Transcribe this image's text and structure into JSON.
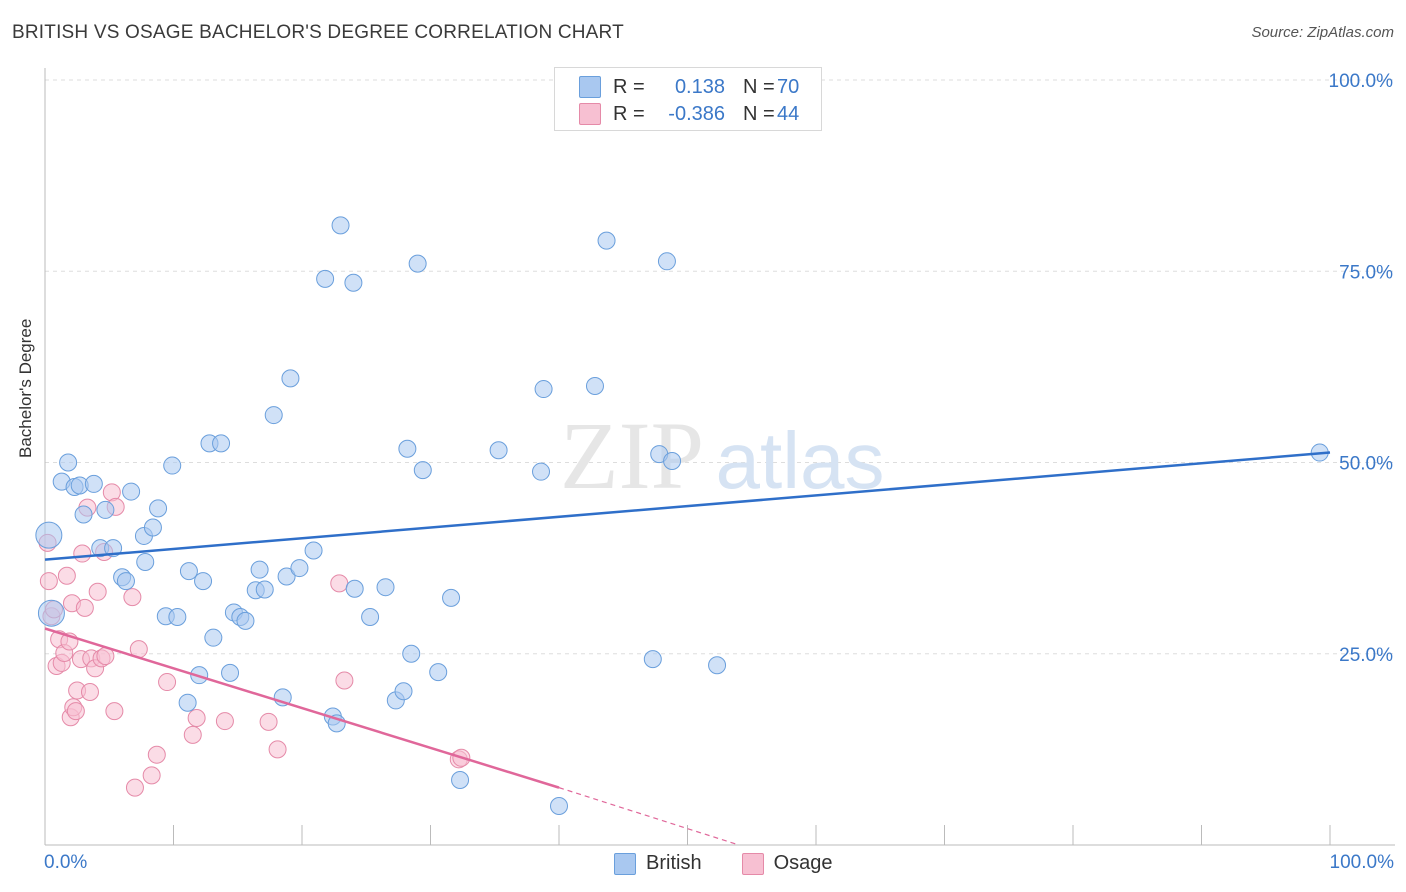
{
  "title": "BRITISH VS OSAGE BACHELOR'S DEGREE CORRELATION CHART",
  "source": "Source: ZipAtlas.com",
  "watermark": {
    "zip": "ZIP",
    "atlas": "atlas"
  },
  "legend": {
    "rows": [
      {
        "r_label": "R =",
        "r_value": "0.138",
        "n_label": "N =",
        "n_value": "70",
        "color": "#a9c8f0",
        "border": "#6a9fdc"
      },
      {
        "r_label": "R =",
        "r_value": "-0.386",
        "n_label": "N =",
        "n_value": "44",
        "color": "#f7c0d2",
        "border": "#e58aa8"
      }
    ]
  },
  "bottom_legend": {
    "british": "British",
    "osage": "Osage"
  },
  "x_tick_left": "0.0%",
  "x_tick_right": "100.0%",
  "colors": {
    "british_fill": "#a9c8f0",
    "british_stroke": "#6a9fdc",
    "british_line": "#2f6fc9",
    "osage_fill": "#f7c0d2",
    "osage_stroke": "#e58aa8",
    "osage_line": "#e0679a",
    "tick_text": "#3b78c8",
    "grid": "#dddddd"
  },
  "chart_data": {
    "type": "scatter",
    "title": "BRITISH VS OSAGE BACHELOR'S DEGREE CORRELATION CHART",
    "xlabel": "",
    "ylabel": "Bachelor's Degree",
    "xlim": [
      0,
      100
    ],
    "ylim": [
      0,
      100
    ],
    "y_ticks": [
      "25.0%",
      "50.0%",
      "75.0%",
      "100.0%"
    ],
    "y_tick_values": [
      25,
      50,
      75,
      100
    ],
    "grid": "horizontal dashed",
    "legend_position": "top-center",
    "series": [
      {
        "name": "British",
        "r": 0.138,
        "n": 70,
        "trend": {
          "x": [
            0,
            100
          ],
          "y": [
            37.3,
            51.3
          ]
        },
        "points": [
          [
            0.3,
            40.5
          ],
          [
            0.5,
            30.3
          ],
          [
            1.3,
            47.5
          ],
          [
            1.8,
            50.0
          ],
          [
            2.3,
            46.8
          ],
          [
            2.7,
            47.0
          ],
          [
            3.0,
            43.2
          ],
          [
            3.8,
            47.2
          ],
          [
            4.3,
            38.8
          ],
          [
            4.7,
            43.8
          ],
          [
            5.3,
            38.8
          ],
          [
            6.7,
            46.2
          ],
          [
            6.0,
            35.0
          ],
          [
            6.3,
            34.5
          ],
          [
            7.7,
            40.4
          ],
          [
            7.8,
            37.0
          ],
          [
            8.4,
            41.5
          ],
          [
            8.8,
            44.0
          ],
          [
            9.4,
            29.9
          ],
          [
            9.9,
            49.6
          ],
          [
            10.3,
            29.8
          ],
          [
            11.1,
            18.6
          ],
          [
            11.2,
            35.8
          ],
          [
            12.0,
            22.2
          ],
          [
            12.3,
            34.5
          ],
          [
            12.8,
            52.5
          ],
          [
            13.1,
            27.1
          ],
          [
            13.7,
            52.5
          ],
          [
            14.4,
            22.5
          ],
          [
            14.7,
            30.4
          ],
          [
            15.2,
            29.8
          ],
          [
            15.6,
            29.3
          ],
          [
            16.4,
            33.3
          ],
          [
            16.7,
            36.0
          ],
          [
            17.1,
            33.4
          ],
          [
            17.8,
            56.2
          ],
          [
            18.5,
            19.3
          ],
          [
            18.8,
            35.1
          ],
          [
            19.1,
            61.0
          ],
          [
            19.8,
            36.2
          ],
          [
            20.9,
            38.5
          ],
          [
            21.8,
            74.0
          ],
          [
            22.4,
            16.8
          ],
          [
            22.7,
            15.9
          ],
          [
            23.0,
            81.0
          ],
          [
            24.0,
            73.5
          ],
          [
            24.1,
            33.5
          ],
          [
            25.3,
            29.8
          ],
          [
            26.5,
            33.7
          ],
          [
            27.3,
            18.9
          ],
          [
            27.9,
            20.1
          ],
          [
            28.2,
            51.8
          ],
          [
            28.5,
            25.0
          ],
          [
            29.0,
            76.0
          ],
          [
            29.4,
            49.0
          ],
          [
            30.6,
            22.6
          ],
          [
            31.6,
            32.3
          ],
          [
            32.3,
            8.5
          ],
          [
            35.3,
            51.6
          ],
          [
            38.6,
            48.8
          ],
          [
            38.8,
            59.6
          ],
          [
            40.0,
            5.1
          ],
          [
            42.8,
            60.0
          ],
          [
            43.7,
            79.0
          ],
          [
            47.3,
            24.3
          ],
          [
            47.8,
            51.1
          ],
          [
            48.4,
            76.3
          ],
          [
            48.8,
            50.2
          ],
          [
            52.3,
            23.5
          ],
          [
            99.2,
            51.3
          ]
        ]
      },
      {
        "name": "Osage",
        "r": -0.386,
        "n": 44,
        "trend": {
          "x": [
            0,
            40
          ],
          "y": [
            28.3,
            7.5
          ]
        },
        "trend_dashed": {
          "x": [
            40,
            54
          ],
          "y": [
            7.5,
            0.0
          ]
        },
        "points": [
          [
            0.2,
            39.5
          ],
          [
            0.3,
            34.5
          ],
          [
            0.5,
            29.9
          ],
          [
            0.7,
            30.8
          ],
          [
            0.9,
            23.4
          ],
          [
            1.1,
            26.9
          ],
          [
            1.3,
            23.8
          ],
          [
            1.5,
            25.1
          ],
          [
            1.7,
            35.2
          ],
          [
            1.9,
            26.6
          ],
          [
            2.0,
            16.7
          ],
          [
            2.1,
            31.6
          ],
          [
            2.2,
            18.0
          ],
          [
            2.4,
            17.5
          ],
          [
            2.5,
            20.2
          ],
          [
            2.8,
            24.3
          ],
          [
            2.9,
            38.1
          ],
          [
            3.1,
            31.0
          ],
          [
            3.3,
            44.1
          ],
          [
            3.5,
            20.0
          ],
          [
            3.6,
            24.4
          ],
          [
            3.9,
            23.1
          ],
          [
            4.1,
            33.1
          ],
          [
            4.4,
            24.4
          ],
          [
            4.6,
            38.3
          ],
          [
            4.7,
            24.7
          ],
          [
            5.2,
            46.1
          ],
          [
            5.4,
            17.5
          ],
          [
            5.5,
            44.2
          ],
          [
            6.8,
            32.4
          ],
          [
            7.0,
            7.5
          ],
          [
            7.3,
            25.6
          ],
          [
            8.3,
            9.1
          ],
          [
            8.7,
            11.8
          ],
          [
            9.5,
            21.3
          ],
          [
            11.5,
            14.4
          ],
          [
            11.8,
            16.6
          ],
          [
            14.0,
            16.2
          ],
          [
            17.4,
            16.1
          ],
          [
            18.1,
            12.5
          ],
          [
            22.9,
            34.2
          ],
          [
            23.3,
            21.5
          ],
          [
            32.2,
            11.2
          ],
          [
            32.4,
            11.4
          ]
        ]
      }
    ]
  }
}
